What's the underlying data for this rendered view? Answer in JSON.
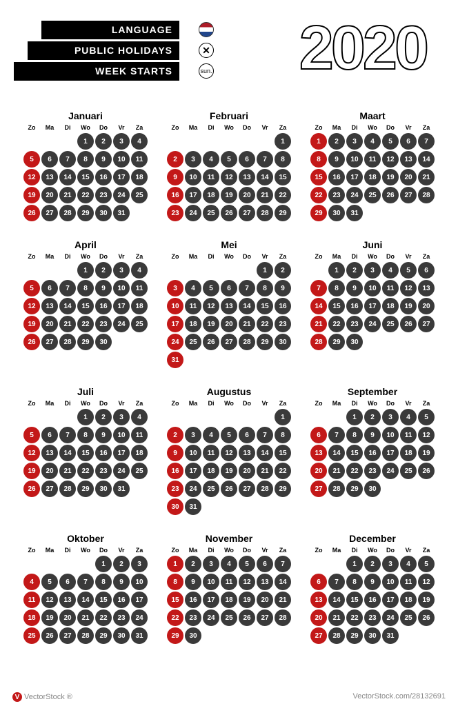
{
  "header": {
    "language_label": "LANGUAGE",
    "holidays_label": "PUBLIC HOLIDAYS",
    "weekstarts_label": "WEEK STARTS",
    "weekstarts_value": "sun.",
    "year": "2020"
  },
  "colors": {
    "day_regular": "#3a3a3a",
    "day_sunday": "#c31818",
    "text_white": "#ffffff",
    "background": "#ffffff",
    "label_bg": "#000000"
  },
  "weekdays": [
    "Zo",
    "Ma",
    "Di",
    "Wo",
    "Do",
    "Vr",
    "Za"
  ],
  "months": [
    {
      "name": "Januari",
      "start": 3,
      "days": 31
    },
    {
      "name": "Februari",
      "start": 6,
      "days": 29
    },
    {
      "name": "Maart",
      "start": 0,
      "days": 31
    },
    {
      "name": "April",
      "start": 3,
      "days": 30
    },
    {
      "name": "Mei",
      "start": 5,
      "days": 31
    },
    {
      "name": "Juni",
      "start": 1,
      "days": 30
    },
    {
      "name": "Juli",
      "start": 3,
      "days": 31
    },
    {
      "name": "Augustus",
      "start": 6,
      "days": 31
    },
    {
      "name": "September",
      "start": 2,
      "days": 30
    },
    {
      "name": "Oktober",
      "start": 4,
      "days": 31
    },
    {
      "name": "November",
      "start": 0,
      "days": 30
    },
    {
      "name": "December",
      "start": 2,
      "days": 31
    }
  ],
  "footer": {
    "brand": "VectorStock",
    "id": "28132691",
    "site": "VectorStock.com/28132691"
  }
}
